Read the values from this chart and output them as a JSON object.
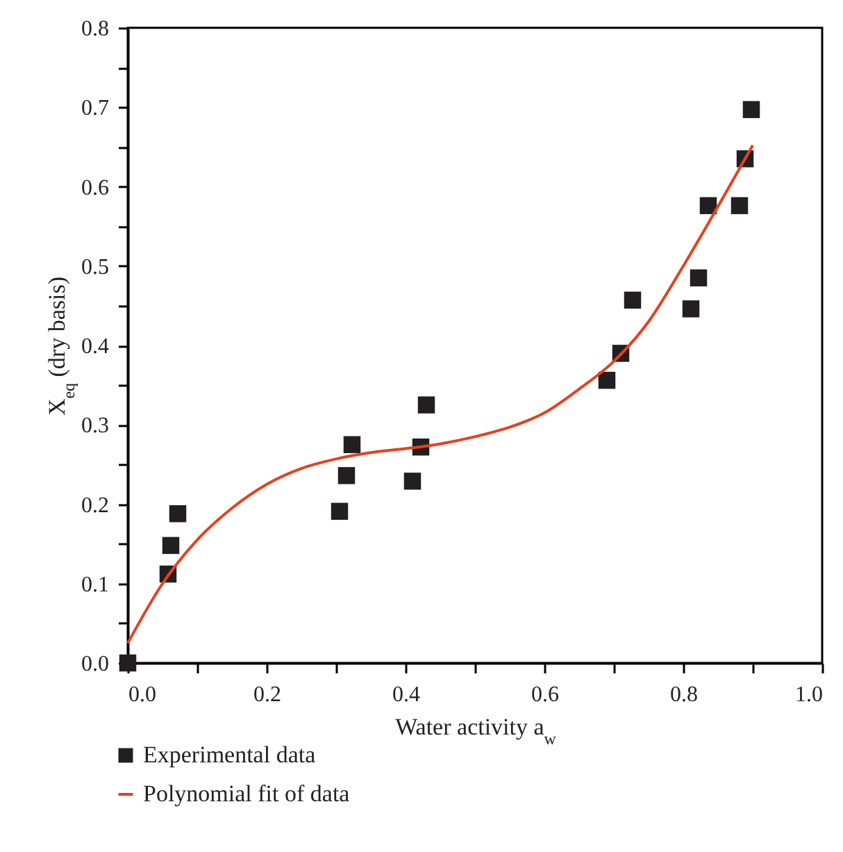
{
  "chart_data": {
    "type": "scatter",
    "xlabel": "Water activity a$_{w}$",
    "ylabel": "X$_{eq}$ (dry basis)",
    "legend": "bottom",
    "xlim": [
      0,
      1
    ],
    "ylim": [
      0,
      0.8
    ],
    "xticks": [
      {
        "value": 0,
        "label": "0.0"
      },
      {
        "value": 0.1,
        "label": null
      },
      {
        "value": 0.2,
        "label": "0.2"
      },
      {
        "value": 0.3,
        "label": null
      },
      {
        "value": 0.4,
        "label": "0.4"
      },
      {
        "value": 0.5,
        "label": null
      },
      {
        "value": 0.6,
        "label": "0.6"
      },
      {
        "value": 0.7,
        "label": null
      },
      {
        "value": 0.8,
        "label": "0.8"
      },
      {
        "value": 0.9,
        "label": null
      },
      {
        "value": 1,
        "label": "1.0"
      }
    ],
    "yticks": [
      {
        "value": 0,
        "label": "0.0"
      },
      {
        "value": 0.05,
        "label": null
      },
      {
        "value": 0.1,
        "label": "0.1"
      },
      {
        "value": 0.15,
        "label": null
      },
      {
        "value": 0.2,
        "label": "0.2"
      },
      {
        "value": 0.25,
        "label": null
      },
      {
        "value": 0.3,
        "label": "0.3"
      },
      {
        "value": 0.35,
        "label": null
      },
      {
        "value": 0.4,
        "label": "0.4"
      },
      {
        "value": 0.45,
        "label": null
      },
      {
        "value": 0.5,
        "label": "0.5"
      },
      {
        "value": 0.55,
        "label": null
      },
      {
        "value": 0.6,
        "label": "0.6"
      },
      {
        "value": 0.65,
        "label": null
      },
      {
        "value": 0.7,
        "label": "0.7"
      },
      {
        "value": 0.75,
        "label": null
      },
      {
        "value": 0.8,
        "label": "0.8"
      }
    ],
    "series": [
      {
        "name": "Experimental data",
        "marker": "square",
        "color": "#231f20",
        "x": [
          0,
          0.058,
          0.062,
          0.072,
          0.305,
          0.315,
          0.323,
          0.41,
          0.422,
          0.43,
          0.69,
          0.71,
          0.727,
          0.811,
          0.822,
          0.836,
          0.881,
          0.889,
          0.898
        ],
        "values": [
          0,
          0.112,
          0.148,
          0.188,
          0.191,
          0.236,
          0.275,
          0.229,
          0.272,
          0.325,
          0.356,
          0.39,
          0.457,
          0.446,
          0.485,
          0.576,
          0.576,
          0.635,
          0.697
        ]
      },
      {
        "name": "Polynomial fit of data",
        "type": "line",
        "color": "#e8401c",
        "x": [
          0,
          0.05,
          0.1,
          0.15,
          0.2,
          0.25,
          0.3,
          0.35,
          0.4,
          0.45,
          0.5,
          0.55,
          0.6,
          0.65,
          0.7,
          0.75,
          0.8,
          0.85,
          0.9
        ],
        "values": [
          0.025,
          0.1,
          0.155,
          0.195,
          0.225,
          0.245,
          0.257,
          0.265,
          0.27,
          0.276,
          0.285,
          0.297,
          0.315,
          0.345,
          0.38,
          0.43,
          0.5,
          0.575,
          0.652
        ]
      }
    ]
  }
}
